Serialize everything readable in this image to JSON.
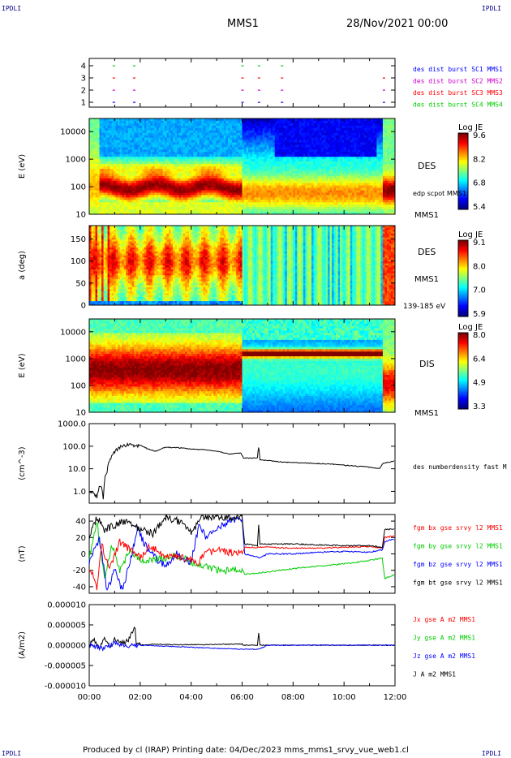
{
  "corner_label": "IPDLI",
  "header": {
    "spacecraft": "MMS1",
    "date": "28/Nov/2021 00:00"
  },
  "footer": "Produced by cl (IRAP)   Printing date: 04/Dec/2023   mms_mms1_srvy_vue_web1.cl",
  "colors": {
    "red": "#ff0000",
    "green": "#00cc00",
    "blue": "#0000ff",
    "black": "#000000",
    "magenta": "#cc00cc",
    "navy": "#0000aa"
  },
  "chart_data": [
    {
      "id": "burst",
      "type": "scatter",
      "yticks": [
        1,
        2,
        3,
        4
      ],
      "ylim": [
        0.6,
        4.6
      ],
      "legend": [
        {
          "label": "des dist burst SC1 MMS1",
          "color": "#0000ff"
        },
        {
          "label": "des dist burst SC2 MMS2",
          "color": "#cc00cc"
        },
        {
          "label": "des dist burst SC3 MMS3",
          "color": "#ff0000"
        },
        {
          "label": "des dist burst SC4 MMS4",
          "color": "#00cc00"
        }
      ],
      "marks": [
        {
          "t": 0.95,
          "sc": [
            1,
            2,
            3,
            4
          ]
        },
        {
          "t": 1.75,
          "sc": [
            1,
            2,
            3,
            4
          ]
        },
        {
          "t": 6.0,
          "sc": [
            1,
            2,
            3,
            4
          ]
        },
        {
          "t": 6.65,
          "sc": [
            1,
            2,
            3,
            4
          ]
        },
        {
          "t": 7.55,
          "sc": [
            1,
            2,
            3,
            4
          ]
        },
        {
          "t": 11.55,
          "sc": [
            1,
            2,
            3
          ]
        }
      ]
    },
    {
      "id": "des_energy",
      "type": "heatmap",
      "ylabel": "E (eV)",
      "yscale": "log",
      "ylim": [
        10,
        30000
      ],
      "yticks": [
        {
          "v": 10,
          "l": "10"
        },
        {
          "v": 100,
          "l": "100"
        },
        {
          "v": 1000,
          "l": "1000"
        },
        {
          "v": 10000,
          "l": "10000"
        }
      ],
      "right_labels": [
        "DES",
        "edp scpot MMS1",
        "MMS1"
      ],
      "colorbar": {
        "title": "Log JE",
        "ticks": [
          "9.6",
          "8.2",
          "6.8",
          "5.4"
        ]
      }
    },
    {
      "id": "des_pitch",
      "type": "heatmap",
      "ylabel": "a (deg)",
      "ylim": [
        0,
        180
      ],
      "yticks": [
        {
          "v": 0,
          "l": "0"
        },
        {
          "v": 50,
          "l": "50"
        },
        {
          "v": 100,
          "l": "100"
        },
        {
          "v": 150,
          "l": "150"
        }
      ],
      "right_labels": [
        "DES",
        "MMS1",
        "139-185 eV"
      ],
      "colorbar": {
        "title": "Log JE",
        "ticks": [
          "9.1",
          "8.0",
          "7.0",
          "5.9"
        ]
      }
    },
    {
      "id": "dis_energy",
      "type": "heatmap",
      "ylabel": "E (eV)",
      "yscale": "log",
      "ylim": [
        10,
        30000
      ],
      "yticks": [
        {
          "v": 10,
          "l": "10"
        },
        {
          "v": 100,
          "l": "100"
        },
        {
          "v": 1000,
          "l": "1000"
        },
        {
          "v": 10000,
          "l": "10000"
        }
      ],
      "right_labels": [
        "DIS",
        "MMS1"
      ],
      "colorbar": {
        "title": "Log JE",
        "ticks": [
          "8.0",
          "6.4",
          "4.9",
          "3.3"
        ]
      }
    },
    {
      "id": "density",
      "type": "line",
      "ylabel": "(cm^-3)",
      "yscale": "log",
      "ylim": [
        0.3,
        1000
      ],
      "yticks": [
        {
          "v": 1,
          "l": "1.0"
        },
        {
          "v": 10,
          "l": "10.0"
        },
        {
          "v": 100,
          "l": "100.0"
        },
        {
          "v": 1000,
          "l": "1000.0"
        }
      ],
      "legend": [
        {
          "label": "des numberdensity fast M",
          "color": "#000000"
        }
      ],
      "series": [
        {
          "color": "#000000",
          "points": [
            [
              0.0,
              1.0
            ],
            [
              0.3,
              0.6
            ],
            [
              0.45,
              2.0
            ],
            [
              0.55,
              0.5
            ],
            [
              0.7,
              8.0
            ],
            [
              0.85,
              30
            ],
            [
              1.0,
              60
            ],
            [
              1.2,
              90
            ],
            [
              1.5,
              120
            ],
            [
              1.75,
              100
            ],
            [
              2.0,
              110
            ],
            [
              2.3,
              75
            ],
            [
              2.6,
              60
            ],
            [
              3.0,
              90
            ],
            [
              3.5,
              85
            ],
            [
              4.0,
              75
            ],
            [
              4.5,
              70
            ],
            [
              5.0,
              60
            ],
            [
              5.5,
              45
            ],
            [
              5.95,
              50
            ],
            [
              6.0,
              40
            ],
            [
              6.05,
              30
            ],
            [
              6.6,
              30
            ],
            [
              6.65,
              90
            ],
            [
              6.7,
              25
            ],
            [
              7.5,
              20
            ],
            [
              8.5,
              18
            ],
            [
              9.5,
              16
            ],
            [
              10.5,
              13
            ],
            [
              11.0,
              12
            ],
            [
              11.4,
              10
            ],
            [
              11.55,
              18
            ],
            [
              12.0,
              22
            ]
          ]
        }
      ]
    },
    {
      "id": "bfield",
      "type": "line",
      "ylabel": "(nT)",
      "ylim": [
        -48,
        48
      ],
      "yticks": [
        {
          "v": -40,
          "l": "-40"
        },
        {
          "v": -20,
          "l": "-20"
        },
        {
          "v": 0,
          "l": "0"
        },
        {
          "v": 20,
          "l": "20"
        },
        {
          "v": 40,
          "l": "40"
        }
      ],
      "legend": [
        {
          "label": "fgm bx gse srvy l2 MMS1",
          "color": "#ff0000"
        },
        {
          "label": "fgm by gse srvy l2 MMS1",
          "color": "#00cc00"
        },
        {
          "label": "fgm bz gse srvy l2 MMS1",
          "color": "#0000ff"
        },
        {
          "label": "fgm bt gse srvy l2 MMS1",
          "color": "#000000"
        }
      ],
      "series": [
        {
          "color": "#00cc00",
          "points": [
            [
              0,
              -5
            ],
            [
              0.3,
              40
            ],
            [
              0.6,
              -30
            ],
            [
              0.9,
              10
            ],
            [
              1.2,
              -20
            ],
            [
              1.6,
              5
            ],
            [
              2,
              -10
            ],
            [
              2.5,
              -8
            ],
            [
              3,
              -5
            ],
            [
              3.5,
              -3
            ],
            [
              4,
              -10
            ],
            [
              4.5,
              -15
            ],
            [
              5,
              -20
            ],
            [
              5.5,
              -20
            ],
            [
              6,
              -18
            ],
            [
              6.1,
              -25
            ],
            [
              7,
              -22
            ],
            [
              8,
              -18
            ],
            [
              9,
              -15
            ],
            [
              10,
              -12
            ],
            [
              11,
              -8
            ],
            [
              11.5,
              -5
            ],
            [
              11.6,
              -30
            ],
            [
              12,
              -25
            ]
          ]
        },
        {
          "color": "#0000ff",
          "points": [
            [
              0,
              -10
            ],
            [
              0.4,
              20
            ],
            [
              0.7,
              -45
            ],
            [
              1.0,
              -20
            ],
            [
              1.3,
              -45
            ],
            [
              1.6,
              -10
            ],
            [
              1.9,
              30
            ],
            [
              2.2,
              10
            ],
            [
              2.6,
              -5
            ],
            [
              3.0,
              -15
            ],
            [
              3.4,
              0
            ],
            [
              4.0,
              -10
            ],
            [
              4.3,
              35
            ],
            [
              4.6,
              20
            ],
            [
              5.0,
              30
            ],
            [
              5.5,
              40
            ],
            [
              6.0,
              42
            ],
            [
              6.1,
              0
            ],
            [
              6.7,
              -5
            ],
            [
              7.0,
              0
            ],
            [
              8,
              0
            ],
            [
              9,
              2
            ],
            [
              10,
              3
            ],
            [
              11,
              2
            ],
            [
              11.5,
              5
            ],
            [
              11.6,
              15
            ],
            [
              12,
              18
            ]
          ]
        },
        {
          "color": "#ff0000",
          "points": [
            [
              0,
              -15
            ],
            [
              0.3,
              -40
            ],
            [
              0.5,
              10
            ],
            [
              0.8,
              -20
            ],
            [
              1.2,
              15
            ],
            [
              1.6,
              5
            ],
            [
              2,
              -5
            ],
            [
              2.4,
              10
            ],
            [
              2.8,
              0
            ],
            [
              3.2,
              -5
            ],
            [
              3.6,
              -3
            ],
            [
              4,
              -8
            ],
            [
              4.3,
              -10
            ],
            [
              4.5,
              0
            ],
            [
              5,
              5
            ],
            [
              5.5,
              2
            ],
            [
              6,
              0
            ],
            [
              6.1,
              8
            ],
            [
              7,
              8
            ],
            [
              8,
              7
            ],
            [
              9,
              7
            ],
            [
              10,
              8
            ],
            [
              11,
              9
            ],
            [
              11.5,
              7
            ],
            [
              11.6,
              20
            ],
            [
              12,
              22
            ]
          ]
        },
        {
          "color": "#000000",
          "points": [
            [
              0,
              20
            ],
            [
              0.3,
              45
            ],
            [
              0.6,
              30
            ],
            [
              1.0,
              35
            ],
            [
              1.4,
              40
            ],
            [
              2,
              30
            ],
            [
              2.5,
              25
            ],
            [
              3,
              45
            ],
            [
              3.5,
              40
            ],
            [
              4,
              25
            ],
            [
              4.4,
              45
            ],
            [
              5,
              45
            ],
            [
              5.5,
              45
            ],
            [
              6,
              45
            ],
            [
              6.1,
              12
            ],
            [
              6.6,
              10
            ],
            [
              6.65,
              35
            ],
            [
              6.7,
              12
            ],
            [
              7,
              12
            ],
            [
              8,
              12
            ],
            [
              9,
              11
            ],
            [
              10,
              10
            ],
            [
              11,
              10
            ],
            [
              11.5,
              8
            ],
            [
              11.6,
              30
            ],
            [
              12,
              30
            ]
          ]
        }
      ]
    },
    {
      "id": "current",
      "type": "line",
      "ylabel": "(A/m2)",
      "ylim": [
        -1e-05,
        1e-05
      ],
      "yticks": [
        {
          "v": -1e-05,
          "l": "-0.000010"
        },
        {
          "v": -5e-06,
          "l": "-0.000005"
        },
        {
          "v": 0,
          "l": "0.000000"
        },
        {
          "v": 5e-06,
          "l": "0.000005"
        },
        {
          "v": 1e-05,
          "l": "0.000010"
        }
      ],
      "xlabel_ticks": [
        "00:00",
        "02:00",
        "04:00",
        "06:00",
        "08:00",
        "10:00",
        "12:00"
      ],
      "legend": [
        {
          "label": "Jx gse A m2 MMS1",
          "color": "#ff0000"
        },
        {
          "label": "Jy gse A m2 MMS1",
          "color": "#00cc00"
        },
        {
          "label": "Jz gse A m2 MMS1",
          "color": "#0000ff"
        },
        {
          "label": "J A m2 MMS1",
          "color": "#000000"
        }
      ],
      "series": [
        {
          "color": "#000000",
          "points": [
            [
              0,
              0
            ],
            [
              0.2,
              1.5e-06
            ],
            [
              0.4,
              -1e-06
            ],
            [
              0.6,
              2e-06
            ],
            [
              0.8,
              -5e-07
            ],
            [
              1.0,
              1.5e-06
            ],
            [
              1.2,
              5e-07
            ],
            [
              1.5,
              1e-06
            ],
            [
              1.8,
              4.5e-06
            ],
            [
              1.85,
              0
            ],
            [
              2.5,
              2e-07
            ],
            [
              4,
              1e-07
            ],
            [
              6,
              3e-07
            ],
            [
              6.05,
              0
            ],
            [
              6.6,
              0
            ],
            [
              6.65,
              3e-06
            ],
            [
              6.7,
              0
            ],
            [
              12,
              0
            ]
          ]
        },
        {
          "color": "#0000ff",
          "points": [
            [
              0,
              0
            ],
            [
              0.5,
              -8e-07
            ],
            [
              1,
              5e-07
            ],
            [
              1.5,
              -3e-07
            ],
            [
              2,
              0
            ],
            [
              6,
              -1e-06
            ],
            [
              6.65,
              -1e-06
            ],
            [
              7,
              0
            ],
            [
              12,
              0
            ]
          ]
        }
      ]
    }
  ]
}
